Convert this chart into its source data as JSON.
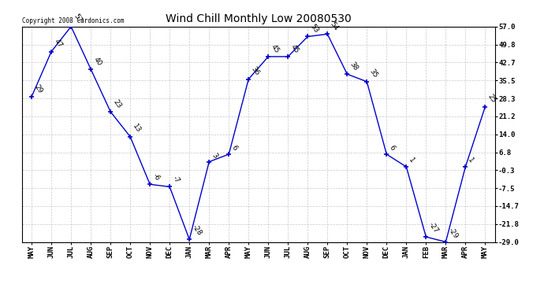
{
  "title": "Wind Chill Monthly Low 20080530",
  "copyright": "Copyright 2008 Cardonics.com",
  "months": [
    "MAY",
    "JUN",
    "JUL",
    "AUG",
    "SEP",
    "OCT",
    "NOV",
    "DEC",
    "JAN",
    "MAR",
    "APR",
    "MAY",
    "JUN",
    "JUL",
    "AUG",
    "SEP",
    "OCT",
    "NOV",
    "DEC",
    "JAN",
    "FEB",
    "MAR",
    "APR",
    "MAY"
  ],
  "values": [
    29,
    47,
    57,
    40,
    23,
    13,
    -6,
    -7,
    -28,
    3,
    6,
    36,
    45,
    45,
    53,
    54,
    38,
    35,
    6,
    1,
    -27,
    -29,
    1,
    25
  ],
  "labels": [
    "29",
    "47",
    "57",
    "40",
    "23",
    "13",
    "-6",
    "-7",
    "-28",
    "3",
    "6",
    "36",
    "45",
    "45",
    "53",
    "54",
    "38",
    "35",
    "6",
    "1",
    "-27",
    "-29",
    "1",
    "25"
  ],
  "line_color": "#0000cc",
  "yticks": [
    57.0,
    49.8,
    42.7,
    35.5,
    28.3,
    21.2,
    14.0,
    6.8,
    -0.3,
    -7.5,
    -14.7,
    -21.8,
    -29.0
  ],
  "bg_color": "#ffffff",
  "grid_color": "#c8c8c8",
  "title_fontsize": 10,
  "label_fontsize": 6.5,
  "tick_fontsize": 6.5
}
